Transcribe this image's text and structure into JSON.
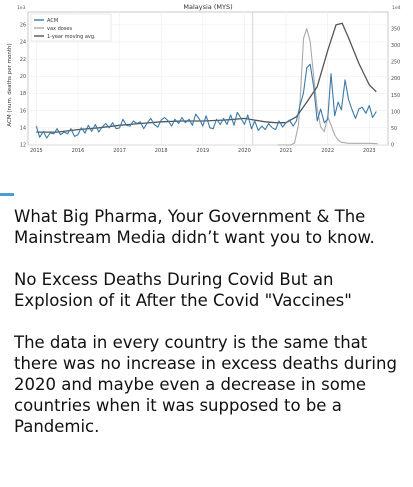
{
  "chart_data": {
    "type": "line",
    "title": "Malaysia (MYS)",
    "ylabel": "ACM (num. deaths per month)",
    "y_multiplier_left": "1e3",
    "y_multiplier_right": "1e4",
    "ylim": [
      12,
      27.5
    ],
    "y2lim": [
      0,
      400
    ],
    "yticks": [
      "12",
      "14",
      "16",
      "18",
      "20",
      "22",
      "24",
      "26"
    ],
    "y2ticks": [
      "0",
      "50",
      "100",
      "150",
      "200",
      "250",
      "300",
      "350"
    ],
    "xlim": [
      2014.8,
      2023.45
    ],
    "xticks": [
      "2015",
      "2016",
      "2017",
      "2018",
      "2019",
      "2020",
      "2021",
      "2022",
      "2023"
    ],
    "vline_x": 2020.2,
    "legend_position": "top-left",
    "colors": {
      "acm": "#3b7aa8",
      "vax": "#aaaaaa",
      "avg": "#555555"
    },
    "series": [
      {
        "name": "ACM",
        "axis": "left",
        "x": [
          2015.0,
          2015.08,
          2015.17,
          2015.25,
          2015.33,
          2015.42,
          2015.5,
          2015.58,
          2015.67,
          2015.75,
          2015.83,
          2015.92,
          2016.0,
          2016.08,
          2016.17,
          2016.25,
          2016.33,
          2016.42,
          2016.5,
          2016.58,
          2016.67,
          2016.75,
          2016.83,
          2016.92,
          2017.0,
          2017.08,
          2017.17,
          2017.25,
          2017.33,
          2017.42,
          2017.5,
          2017.58,
          2017.67,
          2017.75,
          2017.83,
          2017.92,
          2018.0,
          2018.08,
          2018.17,
          2018.25,
          2018.33,
          2018.42,
          2018.5,
          2018.58,
          2018.67,
          2018.75,
          2018.83,
          2018.92,
          2019.0,
          2019.08,
          2019.17,
          2019.25,
          2019.33,
          2019.42,
          2019.5,
          2019.58,
          2019.67,
          2019.75,
          2019.83,
          2019.92,
          2020.0,
          2020.08,
          2020.17,
          2020.25,
          2020.33,
          2020.42,
          2020.5,
          2020.58,
          2020.67,
          2020.75,
          2020.83,
          2020.92,
          2021.0,
          2021.08,
          2021.17,
          2021.25,
          2021.33,
          2021.42,
          2021.5,
          2021.58,
          2021.67,
          2021.75,
          2021.83,
          2021.92,
          2022.0,
          2022.08,
          2022.17,
          2022.25,
          2022.33,
          2022.42,
          2022.5,
          2022.58,
          2022.67,
          2022.75,
          2022.83,
          2022.92,
          2023.0,
          2023.08,
          2023.17
        ],
        "values": [
          14.2,
          12.9,
          13.6,
          12.8,
          13.4,
          13.3,
          13.9,
          13.2,
          13.5,
          13.3,
          13.9,
          13.0,
          13.2,
          14.0,
          13.4,
          14.3,
          13.6,
          14.4,
          13.5,
          14.1,
          14.5,
          14.0,
          14.6,
          13.9,
          14.0,
          15.0,
          14.3,
          14.2,
          14.8,
          14.5,
          14.7,
          13.9,
          14.6,
          15.1,
          14.4,
          14.1,
          14.9,
          15.2,
          14.8,
          14.2,
          15.0,
          14.5,
          15.2,
          14.6,
          15.0,
          14.3,
          15.6,
          15.0,
          14.2,
          15.4,
          14.0,
          13.9,
          15.0,
          14.4,
          15.1,
          14.4,
          15.5,
          14.3,
          15.8,
          15.1,
          14.4,
          15.5,
          13.9,
          14.8,
          13.7,
          14.2,
          13.8,
          14.5,
          14.0,
          13.8,
          14.8,
          14.1,
          14.6,
          14.9,
          14.2,
          14.8,
          16.5,
          18.1,
          21.0,
          21.4,
          18.6,
          14.8,
          16.2,
          14.6,
          15.0,
          20.3,
          15.4,
          17.0,
          16.1,
          19.6,
          17.3,
          16.2,
          15.1,
          16.2,
          16.4,
          15.7,
          16.6,
          15.2,
          15.9
        ]
      },
      {
        "name": "vax doses",
        "axis": "right",
        "x": [
          2020.8,
          2021.0,
          2021.1,
          2021.2,
          2021.3,
          2021.35,
          2021.42,
          2021.5,
          2021.58,
          2021.67,
          2021.75,
          2021.83,
          2021.92,
          2022.0,
          2022.08,
          2022.17,
          2022.25,
          2022.33,
          2022.5,
          2022.75,
          2023.0,
          2023.2
        ],
        "values": [
          0,
          0,
          0,
          5,
          60,
          160,
          320,
          350,
          310,
          200,
          110,
          55,
          40,
          85,
          60,
          30,
          15,
          8,
          5,
          5,
          5,
          4
        ]
      },
      {
        "name": "1-year moving avg.",
        "axis": "left",
        "x": [
          2015.0,
          2015.5,
          2016.0,
          2016.5,
          2017.0,
          2017.5,
          2018.0,
          2018.5,
          2019.0,
          2019.5,
          2019.75,
          2020.0,
          2020.25,
          2020.5,
          2020.75,
          2021.0,
          2021.25,
          2021.5,
          2021.75,
          2022.0,
          2022.2,
          2022.35,
          2022.5,
          2022.75,
          2023.0,
          2023.17
        ],
        "values": [
          13.5,
          13.5,
          13.8,
          14.0,
          14.3,
          14.5,
          14.7,
          14.8,
          14.8,
          14.9,
          15.0,
          15.1,
          14.9,
          14.7,
          14.6,
          14.6,
          15.3,
          17.0,
          18.8,
          23.0,
          26.0,
          26.2,
          24.5,
          21.5,
          19.0,
          18.2
        ]
      }
    ]
  },
  "post": {
    "paragraph_1": "What Big Pharma, Your Government & The Mainstream Media didn’t want you to know.",
    "paragraph_2": "No Excess Deaths During Covid But an Explosion of it After the Covid \"Vaccines\"",
    "paragraph_3": "The data in every country is the same that there was no increase in excess deaths during 2020 and maybe even a decrease in some countries when it was supposed to be a Pandemic."
  }
}
